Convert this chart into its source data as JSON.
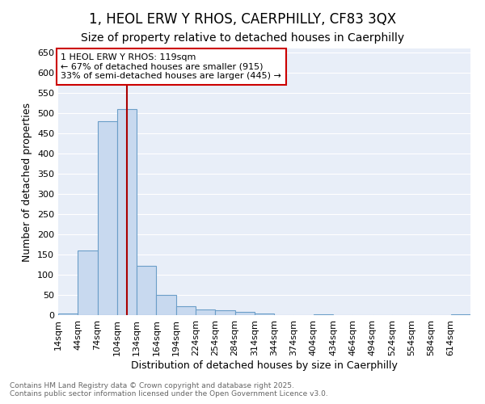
{
  "title1": "1, HEOL ERW Y RHOS, CAERPHILLY, CF83 3QX",
  "title2": "Size of property relative to detached houses in Caerphilly",
  "xlabel": "Distribution of detached houses by size in Caerphilly",
  "ylabel": "Number of detached properties",
  "bar_edges": [
    14,
    44,
    74,
    104,
    134,
    164,
    194,
    224,
    254,
    284,
    314,
    344,
    374,
    404,
    434,
    464,
    494,
    524,
    554,
    584,
    614
  ],
  "bar_heights": [
    5,
    160,
    480,
    510,
    122,
    50,
    23,
    15,
    12,
    9,
    5,
    0,
    0,
    3,
    0,
    0,
    0,
    0,
    0,
    0,
    3
  ],
  "bar_color": "#c8d9ef",
  "bar_edgecolor": "#6b9ec8",
  "property_size": 119,
  "annotation_text": "1 HEOL ERW Y RHOS: 119sqm\n← 67% of detached houses are smaller (915)\n33% of semi-detached houses are larger (445) →",
  "vline_color": "#aa0000",
  "annotation_box_edgecolor": "#cc0000",
  "annotation_box_facecolor": "#ffffff",
  "ylim": [
    0,
    660
  ],
  "yticks": [
    0,
    50,
    100,
    150,
    200,
    250,
    300,
    350,
    400,
    450,
    500,
    550,
    600,
    650
  ],
  "fig_bg_color": "#ffffff",
  "axes_bg_color": "#e8eef8",
  "grid_color": "#ffffff",
  "footer_text": "Contains HM Land Registry data © Crown copyright and database right 2025.\nContains public sector information licensed under the Open Government Licence v3.0.",
  "tick_label_fontsize": 8,
  "axis_label_fontsize": 9,
  "title_fontsize1": 12,
  "title_fontsize2": 10,
  "annotation_fontsize": 8
}
